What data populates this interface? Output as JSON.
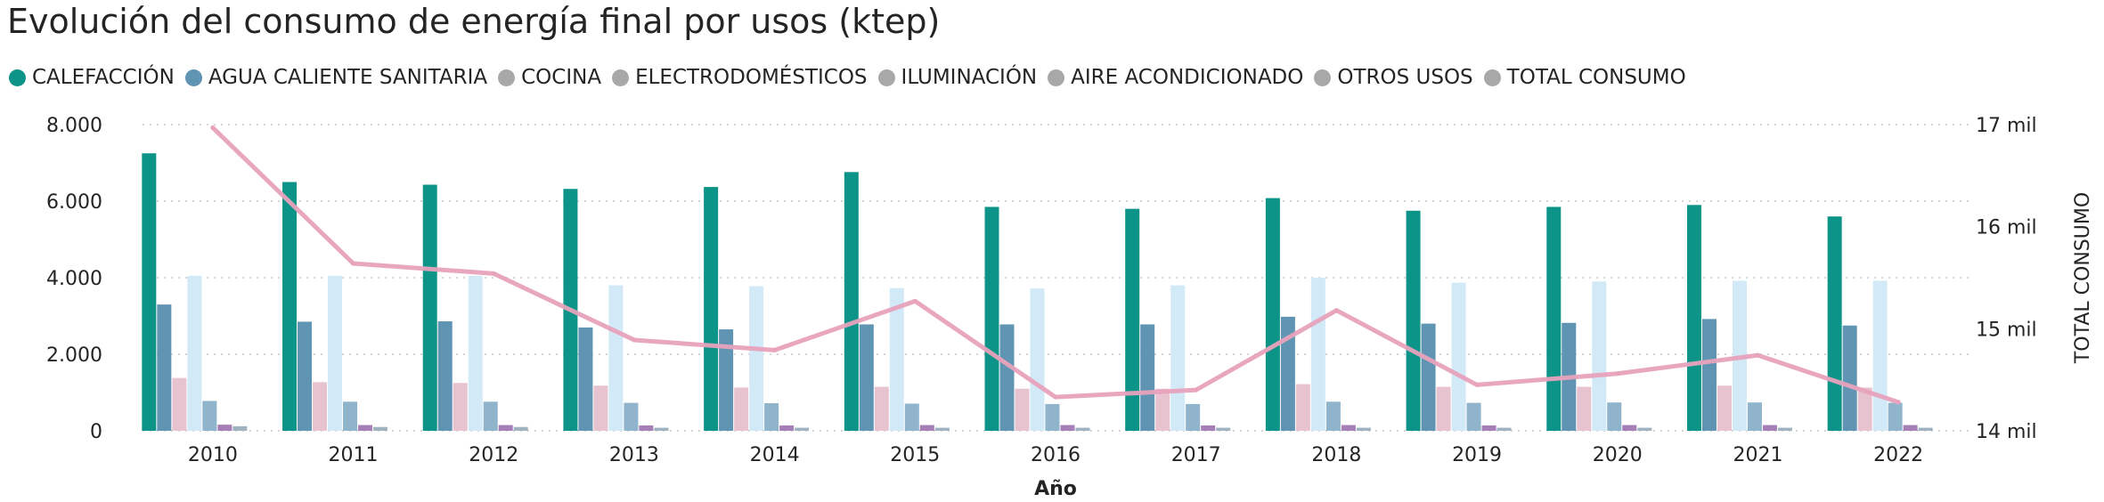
{
  "title": "Evolución del consumo de energía final por usos (ktep)",
  "legend": [
    {
      "label": "CALEFACCIÓN",
      "color": "#0d9488"
    },
    {
      "label": "AGUA CALIENTE SANITARIA",
      "color": "#5f94b3"
    },
    {
      "label": "COCINA",
      "color": "#a8a8a8"
    },
    {
      "label": "ELECTRODOMÉSTICOS",
      "color": "#a8a8a8"
    },
    {
      "label": "ILUMINACIÓN",
      "color": "#a8a8a8"
    },
    {
      "label": "AIRE ACONDICIONADO",
      "color": "#a8a8a8"
    },
    {
      "label": "OTROS USOS",
      "color": "#a8a8a8"
    },
    {
      "label": "TOTAL CONSUMO",
      "color": "#a8a8a8"
    }
  ],
  "chart_data": {
    "type": "bar",
    "title": "Evolución del consumo de energía final por usos (ktep)",
    "xlabel": "Año",
    "ylabel": "",
    "y2label": "TOTAL CONSUMO",
    "categories": [
      "2010",
      "2011",
      "2012",
      "2013",
      "2014",
      "2015",
      "2016",
      "2017",
      "2018",
      "2019",
      "2020",
      "2021",
      "2022"
    ],
    "ylim": [
      0,
      8000
    ],
    "yticks": [
      0,
      2000,
      4000,
      6000,
      8000
    ],
    "ytick_labels": [
      "0",
      "2.000",
      "4.000",
      "6.000",
      "8.000"
    ],
    "y2lim": [
      14000,
      17000
    ],
    "y2ticks": [
      14000,
      15000,
      16000,
      17000
    ],
    "y2tick_labels": [
      "14 mil",
      "15 mil",
      "16 mil",
      "17 mil"
    ],
    "series": [
      {
        "name": "CALEFACCIÓN",
        "color": "#0d9488",
        "values": [
          7250,
          6500,
          6430,
          6320,
          6370,
          6760,
          5850,
          5800,
          6080,
          5750,
          5850,
          5900,
          5600
        ]
      },
      {
        "name": "AGUA CALIENTE SANITARIA",
        "color": "#5f94b3",
        "values": [
          3300,
          2850,
          2860,
          2700,
          2650,
          2780,
          2780,
          2780,
          2980,
          2800,
          2820,
          2920,
          2750
        ]
      },
      {
        "name": "COCINA",
        "color": "#e7c3cf",
        "values": [
          1380,
          1270,
          1250,
          1180,
          1130,
          1150,
          1100,
          1100,
          1220,
          1150,
          1150,
          1180,
          1130
        ]
      },
      {
        "name": "ELECTRODOMÉSTICOS",
        "color": "#d2e9f7",
        "values": [
          4050,
          4050,
          4050,
          3800,
          3780,
          3730,
          3720,
          3800,
          4000,
          3870,
          3900,
          3920,
          3920
        ]
      },
      {
        "name": "ILUMINACIÓN",
        "color": "#8fb4cb",
        "values": [
          780,
          760,
          760,
          730,
          720,
          710,
          700,
          700,
          760,
          730,
          740,
          740,
          730
        ]
      },
      {
        "name": "AIRE ACONDICIONADO",
        "color": "#a57fb6",
        "values": [
          160,
          150,
          150,
          140,
          140,
          150,
          150,
          140,
          150,
          140,
          150,
          150,
          150
        ]
      },
      {
        "name": "OTROS USOS",
        "color": "#9fb2c0",
        "values": [
          120,
          100,
          100,
          80,
          80,
          80,
          80,
          80,
          80,
          80,
          80,
          80,
          80
        ]
      },
      {
        "name": "TOTAL CONSUMO",
        "type": "line",
        "axis": "right",
        "color": "#e8a2bc",
        "values": [
          16970,
          15640,
          15540,
          14890,
          14790,
          15270,
          14330,
          14400,
          15180,
          14450,
          14560,
          14740,
          14280
        ]
      }
    ]
  }
}
